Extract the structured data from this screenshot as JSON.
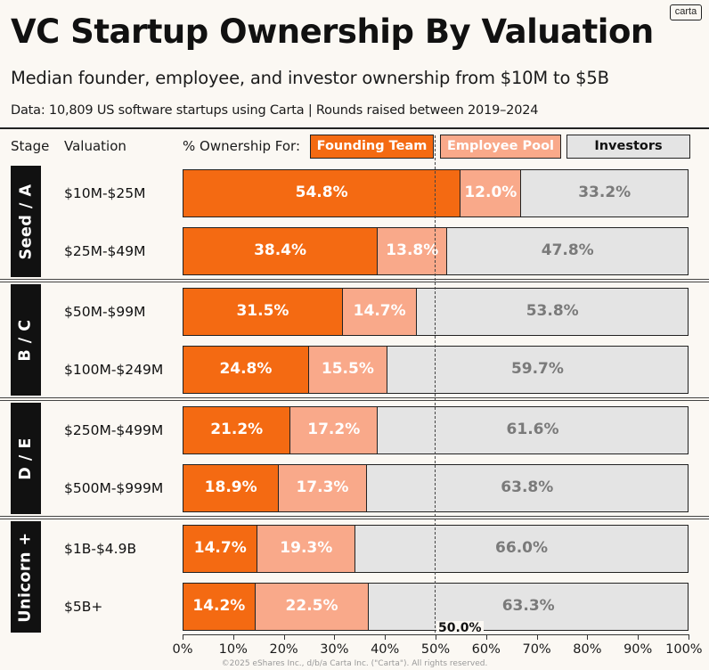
{
  "brand": {
    "logo_text": "carta"
  },
  "header": {
    "title": "VC Startup Ownership By Valuation",
    "subtitle": "Median founder, employee, and investor ownership from $10M to $5B",
    "source": "Data: 10,809 US software startups using Carta | Rounds raised between 2019–2024"
  },
  "columns": {
    "stage": "Stage",
    "valuation": "Valuation",
    "ownership": "% Ownership For:"
  },
  "colors": {
    "founding": "#f46a12",
    "employee": "#f9a98a",
    "investors": "#e4e4e4"
  },
  "chart_data": {
    "type": "bar",
    "orientation": "horizontal",
    "stacked": true,
    "legend": [
      "Founding Team",
      "Employee Pool",
      "Investors"
    ],
    "legend_placement": "top",
    "groups": [
      {
        "stage": "Seed / A",
        "rows": [
          {
            "valuation": "$10M-$25M",
            "founding": 54.8,
            "employee": 12.0,
            "investors": 33.2
          },
          {
            "valuation": "$25M-$49M",
            "founding": 38.4,
            "employee": 13.8,
            "investors": 47.8
          }
        ]
      },
      {
        "stage": "B / C",
        "rows": [
          {
            "valuation": "$50M-$99M",
            "founding": 31.5,
            "employee": 14.7,
            "investors": 53.8
          },
          {
            "valuation": "$100M-$249M",
            "founding": 24.8,
            "employee": 15.5,
            "investors": 59.7
          }
        ]
      },
      {
        "stage": "D / E",
        "rows": [
          {
            "valuation": "$250M-$499M",
            "founding": 21.2,
            "employee": 17.2,
            "investors": 61.6
          },
          {
            "valuation": "$500M-$999M",
            "founding": 18.9,
            "employee": 17.3,
            "investors": 63.8
          }
        ]
      },
      {
        "stage": "Unicorn +",
        "rows": [
          {
            "valuation": "$1B-$4.9B",
            "founding": 14.7,
            "employee": 19.3,
            "investors": 66.0
          },
          {
            "valuation": "$5B+",
            "founding": 14.2,
            "employee": 22.5,
            "investors": 63.3
          }
        ]
      }
    ],
    "x_ticks": [
      "0%",
      "10%",
      "20%",
      "30%",
      "40%",
      "50%",
      "60%",
      "70%",
      "80%",
      "90%",
      "100%"
    ],
    "xlim": [
      0,
      100
    ],
    "reference_line": {
      "value": 50,
      "label": "50.0%"
    },
    "grid": false
  },
  "footer": {
    "copyright": "©2025 eShares Inc., d/b/a Carta Inc. (\"Carta\"). All rights reserved."
  }
}
